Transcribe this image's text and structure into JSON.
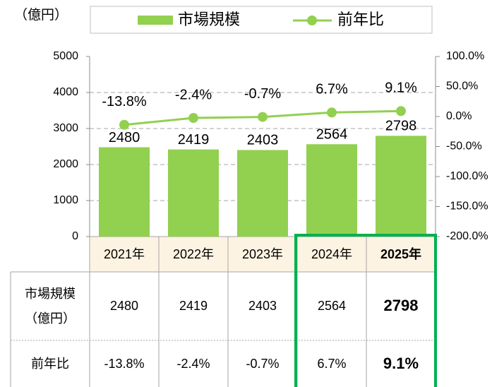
{
  "chart_data": {
    "type": "bar_line",
    "y_label": "（億円）",
    "categories": [
      "2021年",
      "2022年",
      "2023年",
      "2024年",
      "2025年"
    ],
    "series": [
      {
        "name": "市場規模",
        "type": "bar",
        "color": "#92d050",
        "values": [
          2480,
          2419,
          2403,
          2564,
          2798
        ]
      },
      {
        "name": "前年比",
        "type": "line",
        "axis": "y2",
        "color": "#92d050",
        "values": [
          -13.8,
          -2.4,
          -0.7,
          6.7,
          9.1
        ],
        "value_labels": [
          "-13.8%",
          "-2.4%",
          "-0.7%",
          "6.7%",
          "9.1%"
        ]
      }
    ],
    "ylim": [
      0,
      5000
    ],
    "yticks": [
      0,
      1000,
      2000,
      3000,
      4000,
      5000
    ],
    "y2lim": [
      -200,
      100
    ],
    "y2ticks": [
      {
        "value": -200,
        "label": "-200.0%"
      },
      {
        "value": -150,
        "label": "-150.0%"
      },
      {
        "value": -100,
        "label": "-100.0%"
      },
      {
        "value": -50,
        "label": "-50.0%"
      },
      {
        "value": 0,
        "label": "0.0%"
      },
      {
        "value": 50,
        "label": "50.0%"
      },
      {
        "value": 100,
        "label": "100.0%"
      }
    ],
    "grid": true,
    "legend": "top"
  }
}
